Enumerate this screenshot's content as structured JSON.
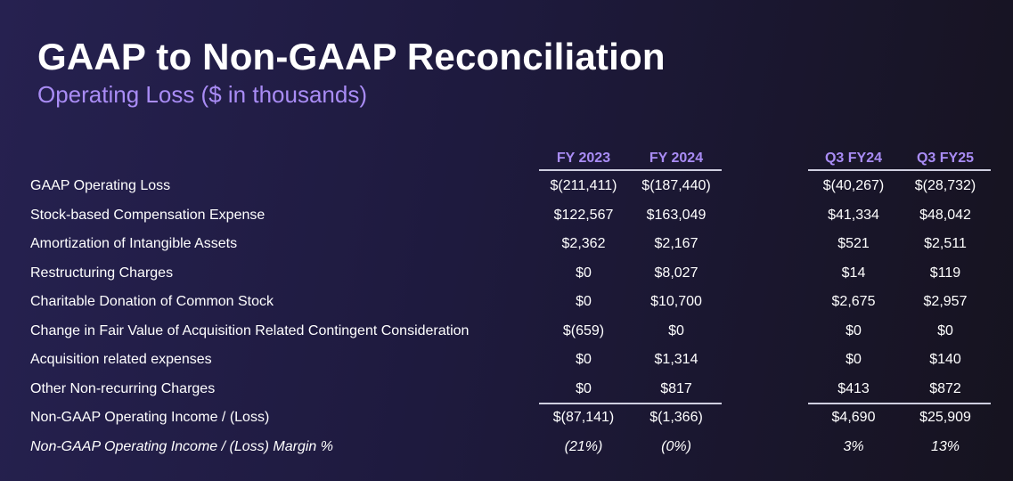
{
  "title": "GAAP to Non-GAAP Reconciliation",
  "subtitle": "Operating Loss ($ in thousands)",
  "columns": [
    "FY 2023",
    "FY 2024",
    "Q3 FY24",
    "Q3 FY25"
  ],
  "rows": [
    {
      "label": "GAAP Operating Loss",
      "values": [
        "$(211,411)",
        "$(187,440)",
        "$(40,267)",
        "$(28,732)"
      ]
    },
    {
      "label": "Stock-based Compensation Expense",
      "values": [
        "$122,567",
        "$163,049",
        "$41,334",
        "$48,042"
      ]
    },
    {
      "label": "Amortization of Intangible Assets",
      "values": [
        "$2,362",
        "$2,167",
        "$521",
        "$2,511"
      ]
    },
    {
      "label": "Restructuring Charges",
      "values": [
        "$0",
        "$8,027",
        "$14",
        "$119"
      ]
    },
    {
      "label": "Charitable Donation of Common Stock",
      "values": [
        "$0",
        "$10,700",
        "$2,675",
        "$2,957"
      ]
    },
    {
      "label": "Change in Fair Value of Acquisition Related Contingent Consideration",
      "values": [
        "$(659)",
        "$0",
        "$0",
        "$0"
      ]
    },
    {
      "label": "Acquisition related expenses",
      "values": [
        "$0",
        "$1,314",
        "$0",
        "$140"
      ]
    },
    {
      "label": "Other Non-recurring Charges",
      "values": [
        "$0",
        "$817",
        "$413",
        "$872"
      ]
    },
    {
      "label": "Non-GAAP Operating Income / (Loss)",
      "values": [
        "$(87,141)",
        "$(1,366)",
        "$4,690",
        "$25,909"
      ]
    },
    {
      "label": "Non-GAAP Operating Income / (Loss) Margin %",
      "values": [
        "(21%)",
        "(0%)",
        "3%",
        "13%"
      ]
    }
  ]
}
